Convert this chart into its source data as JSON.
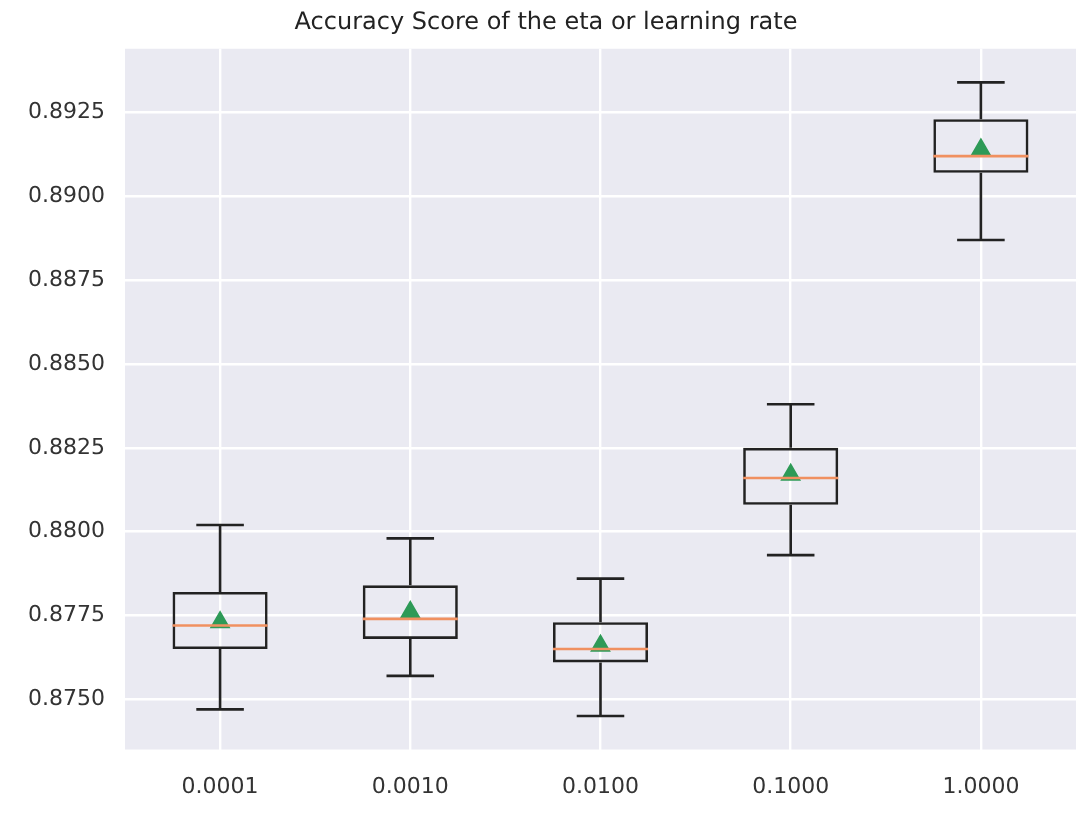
{
  "chart_data": {
    "type": "box",
    "title": "Accuracy Score of the eta or learning rate",
    "categories": [
      "0.0001",
      "0.0010",
      "0.0100",
      "0.1000",
      "1.0000"
    ],
    "boxes": [
      {
        "low": 0.8747,
        "q1": 0.8765,
        "median": 0.8772,
        "q3": 0.8782,
        "high": 0.8802,
        "mean": 0.8773
      },
      {
        "low": 0.8757,
        "q1": 0.8768,
        "median": 0.8774,
        "q3": 0.8784,
        "high": 0.8798,
        "mean": 0.8776
      },
      {
        "low": 0.8745,
        "q1": 0.8761,
        "median": 0.8765,
        "q3": 0.8773,
        "high": 0.8786,
        "mean": 0.8766
      },
      {
        "low": 0.8793,
        "q1": 0.8808,
        "median": 0.8816,
        "q3": 0.8825,
        "high": 0.8838,
        "mean": 0.8817
      },
      {
        "low": 0.8887,
        "q1": 0.8907,
        "median": 0.8912,
        "q3": 0.8923,
        "high": 0.8934,
        "mean": 0.8914
      }
    ],
    "ylim": [
      0.8735,
      0.8944
    ],
    "yticks": [
      {
        "value": 0.875,
        "label": "0.8750"
      },
      0.8775,
      {
        "value": 0.88,
        "label": "0.8800"
      },
      0.8825,
      {
        "value": 0.885,
        "label": "0.8850"
      },
      0.8875,
      {
        "value": 0.89,
        "label": "0.8900"
      },
      0.8925
    ],
    "grid": true,
    "marker": "triangle"
  }
}
